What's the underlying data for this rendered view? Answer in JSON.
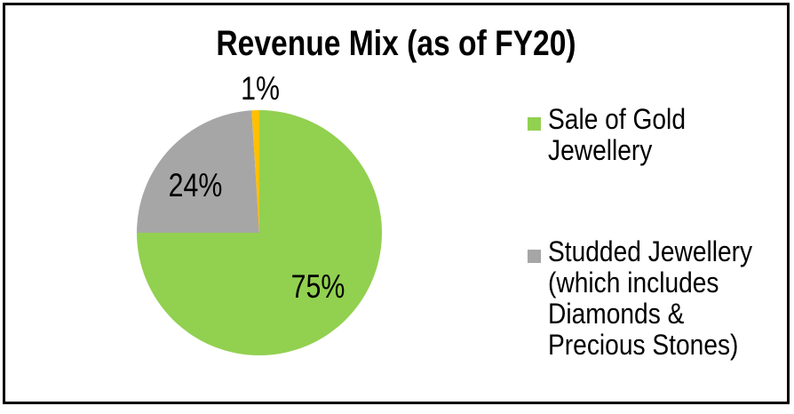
{
  "window": {
    "background_color": "#FFFFFF",
    "border_color": "#000000"
  },
  "chart_data": {
    "type": "pie",
    "title": "Revenue Mix (as of FY20)",
    "start_angle_deg": 0,
    "direction": "clockwise",
    "legend_position": "right",
    "slices": [
      {
        "name": "Sale of Gold Jewellery",
        "value": 75,
        "label": "75%",
        "color": "#92D050",
        "label_placement": "inside"
      },
      {
        "name": "Studded Jewellery (which includes Diamonds & Precious Stones)",
        "value": 24,
        "label": "24%",
        "color": "#A6A6A6",
        "label_placement": "inside"
      },
      {
        "value": 1,
        "label": "1%",
        "color": "#FFC000",
        "label_placement": "outside"
      }
    ]
  },
  "legend": {
    "items": [
      {
        "color": "#92D050",
        "lines": [
          "Sale of Gold",
          "Jewellery"
        ]
      },
      {
        "color": "#A6A6A6",
        "lines": [
          "Studded Jewellery",
          "(which includes",
          "Diamonds &",
          "Precious Stones)"
        ]
      }
    ]
  }
}
